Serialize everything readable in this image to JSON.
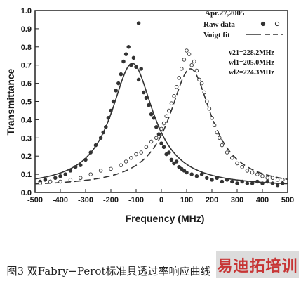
{
  "chart_data": {
    "type": "scatter",
    "xlabel": "Frequency (MHz)",
    "ylabel": "Transmittance",
    "xlim": [
      -500,
      500
    ],
    "ylim": [
      0.0,
      1.0
    ],
    "xticks": [
      -500,
      -400,
      -300,
      -200,
      -100,
      0,
      100,
      200,
      300,
      400,
      500
    ],
    "yticks": [
      0.0,
      0.1,
      0.2,
      0.3,
      0.4,
      0.5,
      0.6,
      0.7,
      0.8,
      0.9,
      1.0
    ],
    "grid": false,
    "legend": {
      "placement": "top-right",
      "date": "Apr.27,2005",
      "entries": [
        {
          "label": "Raw data",
          "markers": [
            "filled-circle",
            "open-circle"
          ]
        },
        {
          "label": "Voigt fit",
          "styles": [
            "solid",
            "dashed"
          ]
        }
      ]
    },
    "annotations": [
      "v21=228.2MHz",
      "wl1=205.0MHz",
      "wl2=224.3MHz"
    ],
    "series": [
      {
        "marker": "filled-circle",
        "fit_style": "solid",
        "fit_peak_center": -115,
        "fit_peak_value": 0.71,
        "fit_baseline": 0.03,
        "fit_halfwidth": 102,
        "x": [
          -480,
          -460,
          -440,
          -420,
          -400,
          -380,
          -360,
          -340,
          -320,
          -300,
          -280,
          -260,
          -240,
          -230,
          -220,
          -210,
          -200,
          -190,
          -180,
          -170,
          -160,
          -150,
          -140,
          -130,
          -120,
          -110,
          -100,
          -90,
          -80,
          -70,
          -60,
          -50,
          -40,
          -30,
          -20,
          -10,
          0,
          10,
          20,
          30,
          40,
          50,
          60,
          70,
          80,
          90,
          100,
          120,
          140,
          160,
          180,
          200,
          220,
          240,
          260,
          280,
          300,
          320,
          340,
          360,
          380,
          400,
          420,
          440,
          460,
          480,
          -90
        ],
        "y": [
          0.06,
          0.07,
          0.06,
          0.08,
          0.09,
          0.1,
          0.12,
          0.14,
          0.15,
          0.18,
          0.22,
          0.26,
          0.3,
          0.33,
          0.36,
          0.41,
          0.45,
          0.5,
          0.56,
          0.6,
          0.65,
          0.72,
          0.76,
          0.8,
          0.7,
          0.74,
          0.69,
          0.62,
          0.68,
          0.55,
          0.52,
          0.48,
          0.43,
          0.41,
          0.36,
          0.32,
          0.27,
          0.25,
          0.21,
          0.22,
          0.18,
          0.16,
          0.17,
          0.14,
          0.13,
          0.12,
          0.11,
          0.1,
          0.09,
          0.1,
          0.08,
          0.07,
          0.08,
          0.06,
          0.07,
          0.06,
          0.05,
          0.06,
          0.05,
          0.05,
          0.06,
          0.05,
          0.06,
          0.05,
          0.04,
          0.05,
          0.93
        ]
      },
      {
        "marker": "open-circle",
        "fit_style": "dashed",
        "fit_peak_center": 115,
        "fit_peak_value": 0.68,
        "fit_baseline": 0.03,
        "fit_halfwidth": 102,
        "x": [
          -480,
          -440,
          -400,
          -360,
          -320,
          -280,
          -240,
          -200,
          -160,
          -140,
          -120,
          -100,
          -80,
          -60,
          -40,
          -20,
          0,
          10,
          20,
          30,
          40,
          50,
          60,
          70,
          80,
          90,
          100,
          110,
          120,
          130,
          140,
          150,
          160,
          170,
          180,
          190,
          200,
          210,
          220,
          230,
          240,
          260,
          280,
          300,
          320,
          340,
          360,
          380,
          400,
          420,
          440,
          460,
          480
        ],
        "y": [
          0.05,
          0.06,
          0.06,
          0.07,
          0.08,
          0.1,
          0.12,
          0.13,
          0.15,
          0.17,
          0.19,
          0.21,
          0.22,
          0.25,
          0.28,
          0.3,
          0.35,
          0.38,
          0.42,
          0.45,
          0.49,
          0.53,
          0.58,
          0.63,
          0.68,
          0.73,
          0.78,
          0.76,
          0.7,
          0.72,
          0.67,
          0.62,
          0.6,
          0.55,
          0.5,
          0.46,
          0.41,
          0.37,
          0.33,
          0.3,
          0.26,
          0.22,
          0.19,
          0.16,
          0.14,
          0.12,
          0.11,
          0.1,
          0.09,
          0.08,
          0.08,
          0.07,
          0.07
        ]
      }
    ]
  },
  "caption": "图3 双Fabry−Perot标准具透过率响应曲线",
  "watermark": "易迪拓培训"
}
